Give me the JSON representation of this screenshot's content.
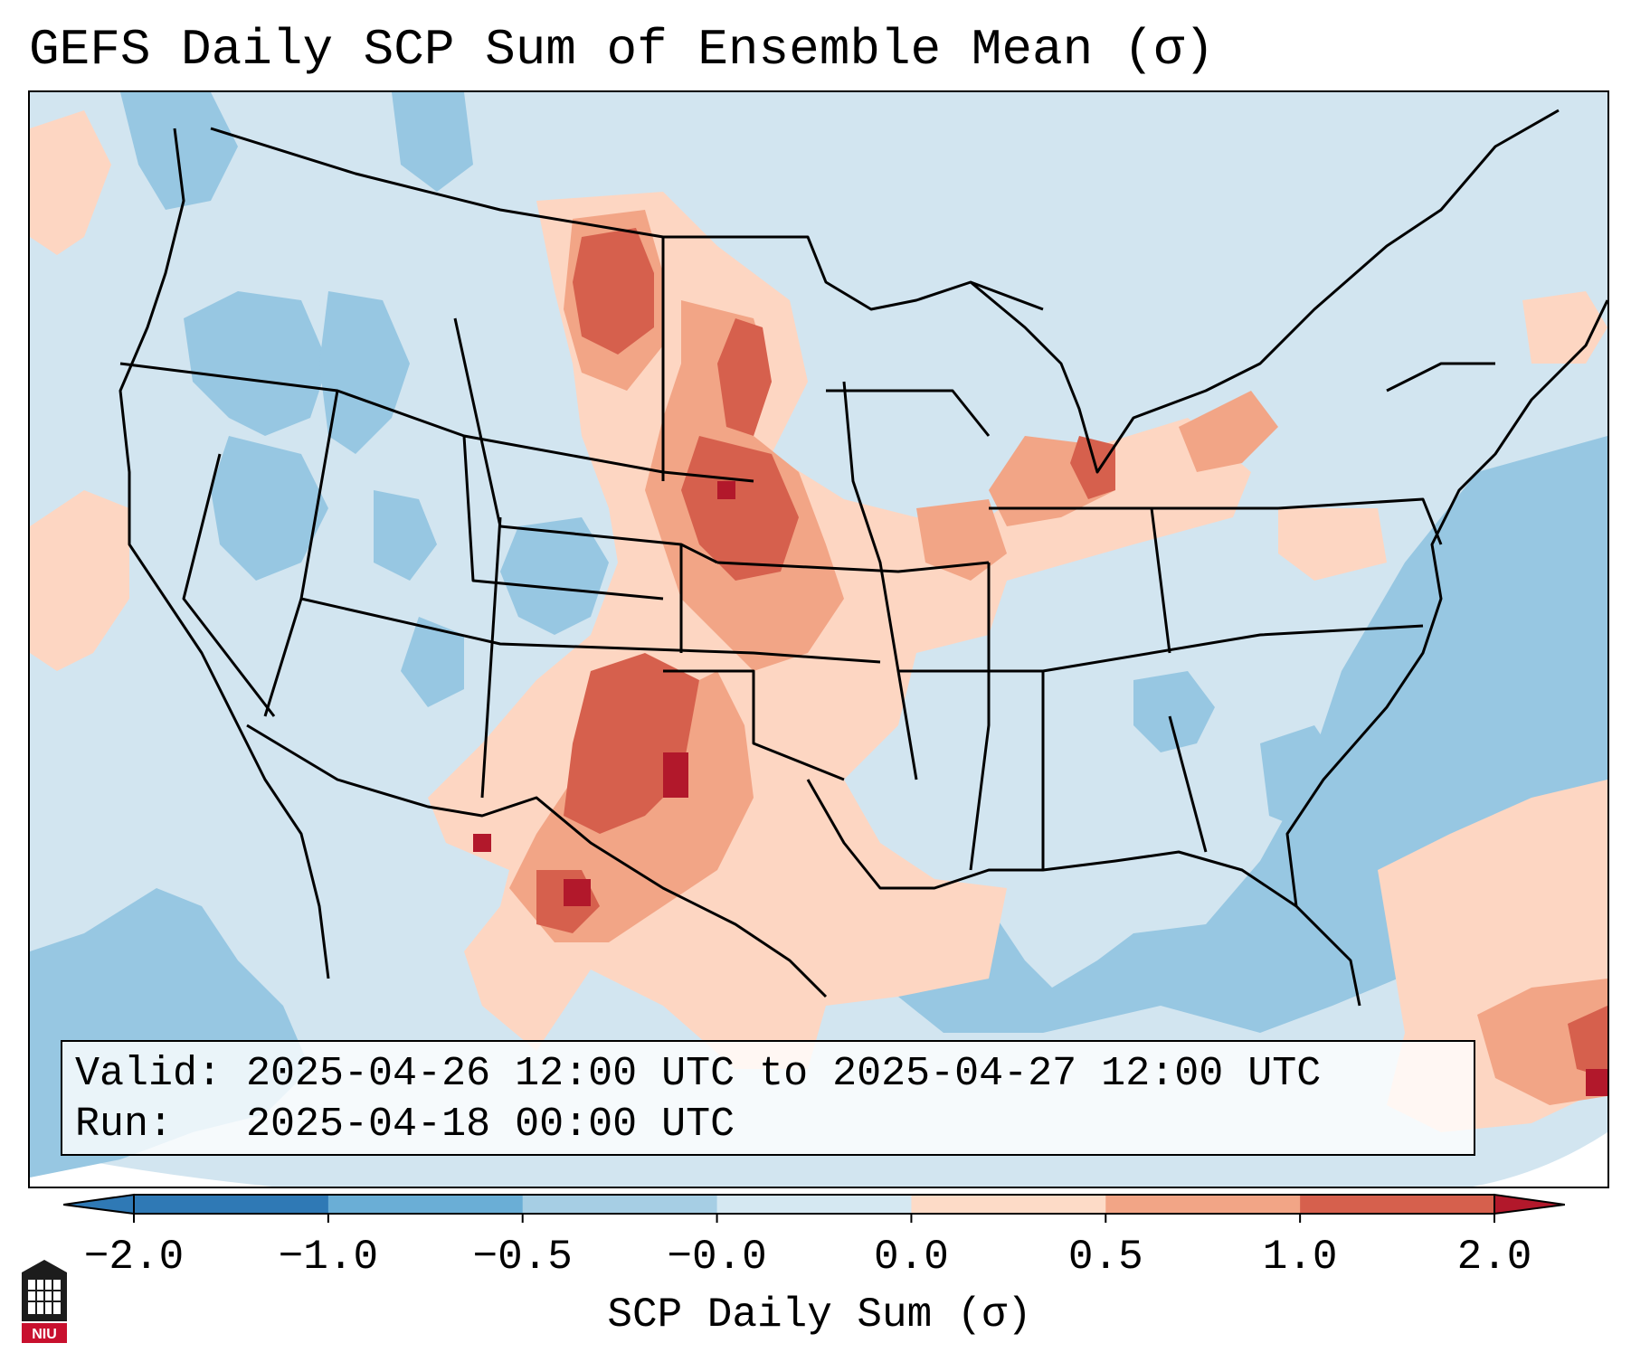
{
  "title": "GEFS Daily SCP Sum of Ensemble Mean (σ)",
  "valid_box": {
    "line1": "Valid: 2025-04-26 12:00 UTC to 2025-04-27 12:00 UTC",
    "line2": "Run:   2025-04-18 00:00 UTC"
  },
  "colorbar": {
    "label": "SCP Daily Sum (σ)",
    "ticks": [
      "−2.0",
      "−1.0",
      "−0.5",
      "−0.0",
      "0.0",
      "0.5",
      "1.0",
      "2.0"
    ],
    "colors": [
      "#2f79b5",
      "#6aaed6",
      "#a6cee4",
      "#d5e8f2",
      "#fddbc7",
      "#f2a586",
      "#d6604d",
      "#b2182b"
    ],
    "extend": "both"
  },
  "legend_colors": {
    "strong_negative": "#6aaed6",
    "negative": "#97c7e2",
    "neutral": "#d2e5f0",
    "positive": "#fdd6c2",
    "moderate_positive": "#f2a586",
    "strong_positive": "#d6604d",
    "extreme_positive": "#b2182b"
  },
  "logo": {
    "text": "NIU",
    "icon": "university-logo-icon"
  }
}
